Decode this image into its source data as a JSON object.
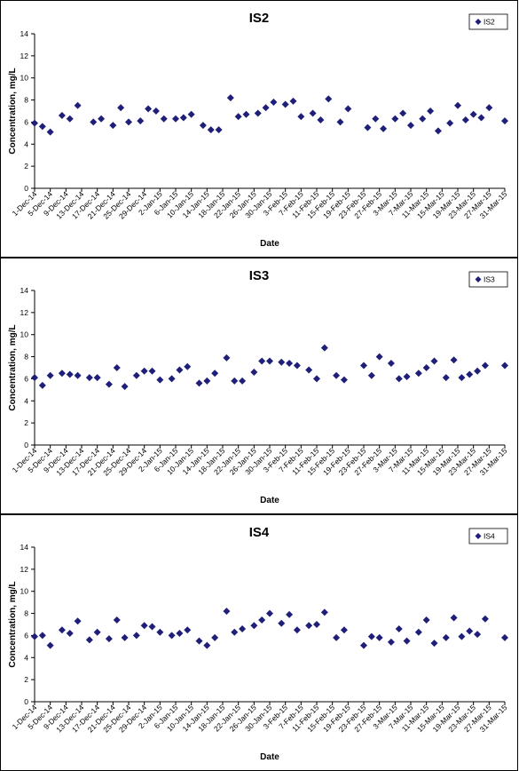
{
  "colors": {
    "marker": "#1f1f7a",
    "axis": "#000000",
    "background": "#ffffff"
  },
  "chart_data": [
    {
      "type": "scatter",
      "title": "IS2",
      "xlabel": "Date",
      "ylabel": "Concentration, mg/L",
      "ylim": [
        0,
        14
      ],
      "yticks": [
        0,
        2,
        4,
        6,
        8,
        10,
        12,
        14
      ],
      "xlim": [
        "1-Dec-14",
        "31-Mar-15"
      ],
      "xticks": [
        "1-Dec-14",
        "5-Dec-14",
        "9-Dec-14",
        "13-Dec-14",
        "17-Dec-14",
        "21-Dec-14",
        "25-Dec-14",
        "29-Dec-14",
        "2-Jan-15",
        "6-Jan-15",
        "10-Jan-15",
        "14-Jan-15",
        "18-Jan-15",
        "22-Jan-15",
        "26-Jan-15",
        "30-Jan-15",
        "3-Feb-15",
        "7-Feb-15",
        "11-Feb-15",
        "15-Feb-15",
        "19-Feb-15",
        "23-Feb-15",
        "27-Feb-15",
        "3-Mar-15",
        "7-Mar-15",
        "11-Mar-15",
        "15-Mar-15",
        "19-Mar-15",
        "23-Mar-15",
        "27-Mar-15",
        "31-Mar-15"
      ],
      "legend": "top-right",
      "grid": false,
      "series": [
        {
          "name": "IS2",
          "points": [
            [
              "1-Dec-14",
              5.9
            ],
            [
              "3-Dec-14",
              5.6
            ],
            [
              "5-Dec-14",
              5.1
            ],
            [
              "8-Dec-14",
              6.6
            ],
            [
              "10-Dec-14",
              6.3
            ],
            [
              "12-Dec-14",
              7.5
            ],
            [
              "16-Dec-14",
              6.0
            ],
            [
              "18-Dec-14",
              6.3
            ],
            [
              "21-Dec-14",
              5.7
            ],
            [
              "23-Dec-14",
              7.3
            ],
            [
              "25-Dec-14",
              6.0
            ],
            [
              "28-Dec-14",
              6.1
            ],
            [
              "30-Dec-14",
              7.2
            ],
            [
              "1-Jan-15",
              7.0
            ],
            [
              "3-Jan-15",
              6.3
            ],
            [
              "6-Jan-15",
              6.3
            ],
            [
              "8-Jan-15",
              6.4
            ],
            [
              "10-Jan-15",
              6.7
            ],
            [
              "13-Jan-15",
              5.7
            ],
            [
              "15-Jan-15",
              5.3
            ],
            [
              "17-Jan-15",
              5.3
            ],
            [
              "20-Jan-15",
              8.2
            ],
            [
              "22-Jan-15",
              6.5
            ],
            [
              "24-Jan-15",
              6.7
            ],
            [
              "27-Jan-15",
              6.8
            ],
            [
              "29-Jan-15",
              7.3
            ],
            [
              "31-Jan-15",
              7.8
            ],
            [
              "3-Feb-15",
              7.6
            ],
            [
              "5-Feb-15",
              7.9
            ],
            [
              "7-Feb-15",
              6.5
            ],
            [
              "10-Feb-15",
              6.8
            ],
            [
              "12-Feb-15",
              6.2
            ],
            [
              "14-Feb-15",
              8.1
            ],
            [
              "17-Feb-15",
              6.0
            ],
            [
              "19-Feb-15",
              7.2
            ],
            [
              "24-Feb-15",
              5.5
            ],
            [
              "26-Feb-15",
              6.3
            ],
            [
              "28-Feb-15",
              5.4
            ],
            [
              "3-Mar-15",
              6.3
            ],
            [
              "5-Mar-15",
              6.8
            ],
            [
              "7-Mar-15",
              5.7
            ],
            [
              "10-Mar-15",
              6.3
            ],
            [
              "12-Mar-15",
              7.0
            ],
            [
              "14-Mar-15",
              5.2
            ],
            [
              "17-Mar-15",
              5.9
            ],
            [
              "19-Mar-15",
              7.5
            ],
            [
              "21-Mar-15",
              6.2
            ],
            [
              "23-Mar-15",
              6.7
            ],
            [
              "25-Mar-15",
              6.4
            ],
            [
              "27-Mar-15",
              7.3
            ],
            [
              "31-Mar-15",
              6.1
            ]
          ]
        }
      ]
    },
    {
      "type": "scatter",
      "title": "IS3",
      "xlabel": "Date",
      "ylabel": "Concentration, mg/L",
      "ylim": [
        0,
        14
      ],
      "yticks": [
        0,
        2,
        4,
        6,
        8,
        10,
        12,
        14
      ],
      "xlim": [
        "1-Dec-14",
        "31-Mar-15"
      ],
      "xticks": [
        "1-Dec-14",
        "5-Dec-14",
        "9-Dec-14",
        "13-Dec-14",
        "17-Dec-14",
        "21-Dec-14",
        "25-Dec-14",
        "29-Dec-14",
        "2-Jan-15",
        "6-Jan-15",
        "10-Jan-15",
        "14-Jan-15",
        "18-Jan-15",
        "22-Jan-15",
        "26-Jan-15",
        "30-Jan-15",
        "3-Feb-15",
        "7-Feb-15",
        "11-Feb-15",
        "15-Feb-15",
        "19-Feb-15",
        "23-Feb-15",
        "27-Feb-15",
        "3-Mar-15",
        "7-Mar-15",
        "11-Mar-15",
        "15-Mar-15",
        "19-Mar-15",
        "23-Mar-15",
        "27-Mar-15",
        "31-Mar-15"
      ],
      "legend": "top-right",
      "grid": false,
      "series": [
        {
          "name": "IS3",
          "points": [
            [
              "1-Dec-14",
              6.1
            ],
            [
              "3-Dec-14",
              5.4
            ],
            [
              "5-Dec-14",
              6.3
            ],
            [
              "8-Dec-14",
              6.5
            ],
            [
              "10-Dec-14",
              6.4
            ],
            [
              "12-Dec-14",
              6.3
            ],
            [
              "15-Dec-14",
              6.1
            ],
            [
              "17-Dec-14",
              6.1
            ],
            [
              "20-Dec-14",
              5.5
            ],
            [
              "22-Dec-14",
              7.0
            ],
            [
              "24-Dec-14",
              5.3
            ],
            [
              "27-Dec-14",
              6.3
            ],
            [
              "29-Dec-14",
              6.7
            ],
            [
              "31-Dec-14",
              6.7
            ],
            [
              "2-Jan-15",
              5.9
            ],
            [
              "5-Jan-15",
              6.0
            ],
            [
              "7-Jan-15",
              6.8
            ],
            [
              "9-Jan-15",
              7.1
            ],
            [
              "12-Jan-15",
              5.6
            ],
            [
              "14-Jan-15",
              5.8
            ],
            [
              "16-Jan-15",
              6.5
            ],
            [
              "19-Jan-15",
              7.9
            ],
            [
              "21-Jan-15",
              5.8
            ],
            [
              "23-Jan-15",
              5.8
            ],
            [
              "26-Jan-15",
              6.6
            ],
            [
              "28-Jan-15",
              7.6
            ],
            [
              "30-Jan-15",
              7.6
            ],
            [
              "2-Feb-15",
              7.5
            ],
            [
              "4-Feb-15",
              7.4
            ],
            [
              "6-Feb-15",
              7.2
            ],
            [
              "9-Feb-15",
              6.8
            ],
            [
              "11-Feb-15",
              6.0
            ],
            [
              "13-Feb-15",
              8.8
            ],
            [
              "16-Feb-15",
              6.3
            ],
            [
              "18-Feb-15",
              5.9
            ],
            [
              "23-Feb-15",
              7.2
            ],
            [
              "25-Feb-15",
              6.3
            ],
            [
              "27-Feb-15",
              8.0
            ],
            [
              "2-Mar-15",
              7.4
            ],
            [
              "4-Mar-15",
              6.0
            ],
            [
              "6-Mar-15",
              6.2
            ],
            [
              "9-Mar-15",
              6.5
            ],
            [
              "11-Mar-15",
              7.0
            ],
            [
              "13-Mar-15",
              7.6
            ],
            [
              "16-Mar-15",
              6.1
            ],
            [
              "18-Mar-15",
              7.7
            ],
            [
              "20-Mar-15",
              6.1
            ],
            [
              "22-Mar-15",
              6.4
            ],
            [
              "24-Mar-15",
              6.7
            ],
            [
              "26-Mar-15",
              7.2
            ],
            [
              "31-Mar-15",
              7.2
            ]
          ]
        }
      ]
    },
    {
      "type": "scatter",
      "title": "IS4",
      "xlabel": "Date",
      "ylabel": "Concentration, mg/L",
      "ylim": [
        0,
        14
      ],
      "yticks": [
        0,
        2,
        4,
        6,
        8,
        10,
        12,
        14
      ],
      "xlim": [
        "1-Dec-14",
        "31-Mar-15"
      ],
      "xticks": [
        "1-Dec-14",
        "5-Dec-14",
        "9-Dec-14",
        "13-Dec-14",
        "17-Dec-14",
        "21-Dec-14",
        "25-Dec-14",
        "29-Dec-14",
        "2-Jan-15",
        "6-Jan-15",
        "10-Jan-15",
        "14-Jan-15",
        "18-Jan-15",
        "22-Jan-15",
        "26-Jan-15",
        "30-Jan-15",
        "3-Feb-15",
        "7-Feb-15",
        "11-Feb-15",
        "15-Feb-15",
        "19-Feb-15",
        "23-Feb-15",
        "27-Feb-15",
        "3-Mar-15",
        "7-Mar-15",
        "11-Mar-15",
        "15-Mar-15",
        "19-Mar-15",
        "23-Mar-15",
        "27-Mar-15",
        "31-Mar-15"
      ],
      "legend": "top-right",
      "grid": false,
      "series": [
        {
          "name": "IS4",
          "points": [
            [
              "1-Dec-14",
              5.9
            ],
            [
              "3-Dec-14",
              6.0
            ],
            [
              "5-Dec-14",
              5.1
            ],
            [
              "8-Dec-14",
              6.5
            ],
            [
              "10-Dec-14",
              6.2
            ],
            [
              "12-Dec-14",
              7.3
            ],
            [
              "15-Dec-14",
              5.6
            ],
            [
              "17-Dec-14",
              6.3
            ],
            [
              "20-Dec-14",
              5.7
            ],
            [
              "22-Dec-14",
              7.4
            ],
            [
              "24-Dec-14",
              5.8
            ],
            [
              "27-Dec-14",
              6.0
            ],
            [
              "29-Dec-14",
              6.9
            ],
            [
              "31-Dec-14",
              6.8
            ],
            [
              "2-Jan-15",
              6.3
            ],
            [
              "5-Jan-15",
              6.0
            ],
            [
              "7-Jan-15",
              6.2
            ],
            [
              "9-Jan-15",
              6.5
            ],
            [
              "12-Jan-15",
              5.5
            ],
            [
              "14-Jan-15",
              5.1
            ],
            [
              "16-Jan-15",
              5.8
            ],
            [
              "19-Jan-15",
              8.2
            ],
            [
              "21-Jan-15",
              6.3
            ],
            [
              "23-Jan-15",
              6.6
            ],
            [
              "26-Jan-15",
              6.9
            ],
            [
              "28-Jan-15",
              7.4
            ],
            [
              "30-Jan-15",
              8.0
            ],
            [
              "2-Feb-15",
              7.1
            ],
            [
              "4-Feb-15",
              7.9
            ],
            [
              "6-Feb-15",
              6.5
            ],
            [
              "9-Feb-15",
              6.9
            ],
            [
              "11-Feb-15",
              7.0
            ],
            [
              "13-Feb-15",
              8.1
            ],
            [
              "16-Feb-15",
              5.8
            ],
            [
              "18-Feb-15",
              6.5
            ],
            [
              "23-Feb-15",
              5.1
            ],
            [
              "25-Feb-15",
              5.9
            ],
            [
              "27-Feb-15",
              5.8
            ],
            [
              "2-Mar-15",
              5.4
            ],
            [
              "4-Mar-15",
              6.6
            ],
            [
              "6-Mar-15",
              5.5
            ],
            [
              "9-Mar-15",
              6.3
            ],
            [
              "11-Mar-15",
              7.4
            ],
            [
              "13-Mar-15",
              5.3
            ],
            [
              "16-Mar-15",
              5.8
            ],
            [
              "18-Mar-15",
              7.6
            ],
            [
              "20-Mar-15",
              5.9
            ],
            [
              "22-Mar-15",
              6.4
            ],
            [
              "24-Mar-15",
              6.1
            ],
            [
              "26-Mar-15",
              7.5
            ],
            [
              "31-Mar-15",
              5.8
            ]
          ]
        }
      ]
    }
  ]
}
